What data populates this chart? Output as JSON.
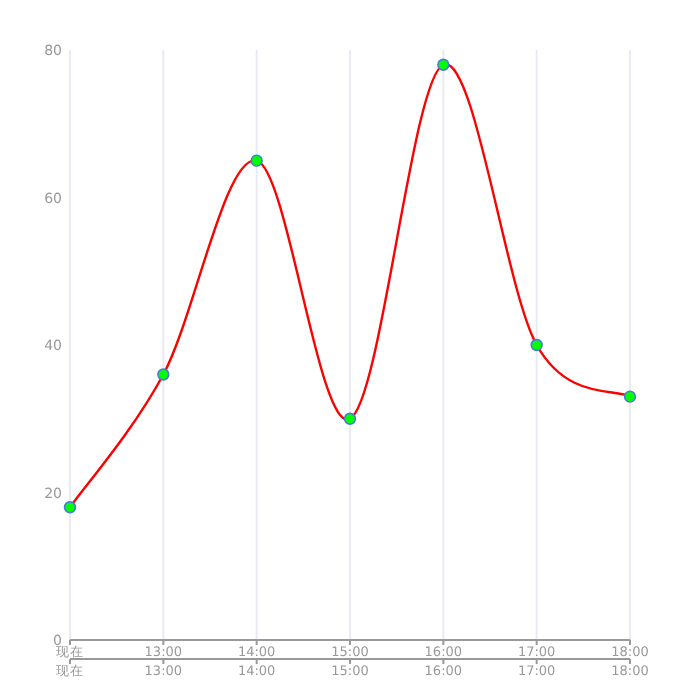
{
  "chart_data": {
    "type": "line",
    "categories": [
      "现在",
      "13:00",
      "14:00",
      "15:00",
      "16:00",
      "17:00",
      "18:00"
    ],
    "series": [
      {
        "color": "#ff0000",
        "values": [
          18,
          36,
          65,
          30,
          78,
          40,
          33
        ]
      }
    ],
    "ylim": [
      0,
      80
    ],
    "yticks": [
      0,
      20,
      40,
      60,
      80
    ],
    "grid": "x",
    "marker": "circle",
    "line_style": "solid"
  }
}
